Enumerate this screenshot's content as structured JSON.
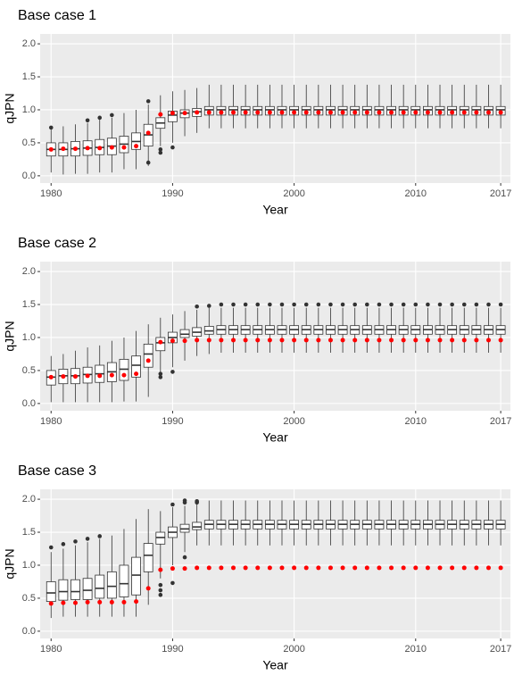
{
  "chart_data": [
    {
      "type": "boxplot",
      "title": "Base case 1",
      "x_label": "Year",
      "y_label": "qJPN",
      "xlim": [
        1979.1,
        2017.8
      ],
      "ylim": [
        -0.11,
        2.15
      ],
      "xticks": [
        1980,
        1990,
        2000,
        2010,
        2017
      ],
      "yticks": [
        {
          "value": 0,
          "label": "0.0"
        },
        {
          "value": 0.5,
          "label": "0.5"
        },
        {
          "value": 1,
          "label": "1.0"
        },
        {
          "value": 1.5,
          "label": "1.5"
        },
        {
          "value": 2,
          "label": "2.0"
        }
      ],
      "grid": true,
      "x": [
        1980,
        1981,
        1982,
        1983,
        1984,
        1985,
        1986,
        1987,
        1988,
        1989,
        1990,
        1991,
        1992,
        1993,
        1994,
        1995,
        1996,
        1997,
        1998,
        1999,
        2000,
        2001,
        2002,
        2003,
        2004,
        2005,
        2006,
        2007,
        2008,
        2009,
        2010,
        2011,
        2012,
        2013,
        2014,
        2015,
        2016,
        2017
      ],
      "box": {
        "color": "#333333",
        "low": [
          0.05,
          0.02,
          0.03,
          0.03,
          0.05,
          0.05,
          0.1,
          0.1,
          0.15,
          0.45,
          0.5,
          0.6,
          0.65,
          0.72,
          0.72,
          0.72,
          0.72,
          0.72,
          0.72,
          0.72,
          0.72,
          0.72,
          0.72,
          0.72,
          0.72,
          0.72,
          0.72,
          0.72,
          0.72,
          0.72,
          0.72,
          0.72,
          0.72,
          0.72,
          0.72,
          0.72,
          0.72,
          0.72
        ],
        "q1": [
          0.3,
          0.3,
          0.3,
          0.31,
          0.32,
          0.32,
          0.35,
          0.4,
          0.45,
          0.72,
          0.82,
          0.88,
          0.9,
          0.92,
          0.92,
          0.92,
          0.92,
          0.92,
          0.92,
          0.92,
          0.92,
          0.92,
          0.92,
          0.92,
          0.92,
          0.92,
          0.92,
          0.92,
          0.92,
          0.92,
          0.92,
          0.92,
          0.92,
          0.92,
          0.92,
          0.92,
          0.92,
          0.92
        ],
        "median": [
          0.4,
          0.4,
          0.41,
          0.42,
          0.43,
          0.45,
          0.48,
          0.52,
          0.62,
          0.8,
          0.92,
          0.95,
          0.97,
          1,
          1,
          1,
          1,
          1,
          1,
          1,
          1,
          1,
          1,
          1,
          1,
          1,
          1,
          1,
          1,
          1,
          1,
          1,
          1,
          1,
          1,
          1,
          1,
          1
        ],
        "q3": [
          0.5,
          0.5,
          0.52,
          0.53,
          0.55,
          0.57,
          0.6,
          0.65,
          0.78,
          0.88,
          0.98,
          1,
          1.02,
          1.05,
          1.05,
          1.05,
          1.05,
          1.05,
          1.05,
          1.05,
          1.05,
          1.05,
          1.05,
          1.05,
          1.05,
          1.05,
          1.05,
          1.05,
          1.05,
          1.05,
          1.05,
          1.05,
          1.05,
          1.05,
          1.05,
          1.05,
          1.05,
          1.05
        ],
        "high": [
          0.7,
          0.75,
          0.78,
          0.8,
          0.85,
          0.88,
          0.95,
          1,
          1.08,
          1.22,
          1.28,
          1.3,
          1.33,
          1.38,
          1.38,
          1.38,
          1.38,
          1.38,
          1.38,
          1.38,
          1.38,
          1.38,
          1.38,
          1.38,
          1.38,
          1.38,
          1.38,
          1.38,
          1.38,
          1.38,
          1.38,
          1.38,
          1.38,
          1.38,
          1.38,
          1.38,
          1.38,
          1.38
        ],
        "outliers": [
          [
            0.73
          ],
          [],
          [],
          [
            0.84
          ],
          [
            0.88
          ],
          [
            0.92
          ],
          [],
          [],
          [
            1.13,
            0.2
          ],
          [
            0.35,
            0.4
          ],
          [
            0.43
          ],
          [],
          [],
          [],
          [],
          [],
          [],
          [],
          [],
          [],
          [],
          [],
          [],
          [],
          [],
          [],
          [],
          [],
          [],
          [],
          [],
          [],
          [],
          [],
          [],
          [],
          [],
          []
        ]
      },
      "points": {
        "color": "#ff0000",
        "values": [
          0.4,
          0.41,
          0.41,
          0.42,
          0.42,
          0.43,
          0.43,
          0.45,
          0.65,
          0.93,
          0.95,
          0.95,
          0.96,
          0.96,
          0.96,
          0.96,
          0.96,
          0.96,
          0.96,
          0.96,
          0.96,
          0.96,
          0.96,
          0.96,
          0.96,
          0.96,
          0.96,
          0.96,
          0.96,
          0.96,
          0.96,
          0.96,
          0.96,
          0.96,
          0.96,
          0.96,
          0.96,
          0.96
        ]
      }
    },
    {
      "type": "boxplot",
      "title": "Base case 2",
      "x_label": "Year",
      "y_label": "qJPN",
      "xlim": [
        1979.1,
        2017.8
      ],
      "ylim": [
        -0.11,
        2.15
      ],
      "xticks": [
        1980,
        1990,
        2000,
        2010,
        2017
      ],
      "yticks": [
        {
          "value": 0,
          "label": "0.0"
        },
        {
          "value": 0.5,
          "label": "0.5"
        },
        {
          "value": 1,
          "label": "1.0"
        },
        {
          "value": 1.5,
          "label": "1.5"
        },
        {
          "value": 2,
          "label": "2.0"
        }
      ],
      "grid": true,
      "x": [
        1980,
        1981,
        1982,
        1983,
        1984,
        1985,
        1986,
        1987,
        1988,
        1989,
        1990,
        1991,
        1992,
        1993,
        1994,
        1995,
        1996,
        1997,
        1998,
        1999,
        2000,
        2001,
        2002,
        2003,
        2004,
        2005,
        2006,
        2007,
        2008,
        2009,
        2010,
        2011,
        2012,
        2013,
        2014,
        2015,
        2016,
        2017
      ],
      "box": {
        "color": "#333333",
        "low": [
          0.02,
          0.02,
          0.02,
          0.02,
          0.02,
          0.02,
          0.03,
          0.03,
          0.1,
          0.45,
          0.55,
          0.65,
          0.72,
          0.75,
          0.77,
          0.77,
          0.77,
          0.77,
          0.77,
          0.77,
          0.77,
          0.77,
          0.77,
          0.77,
          0.77,
          0.77,
          0.77,
          0.77,
          0.77,
          0.77,
          0.77,
          0.77,
          0.77,
          0.77,
          0.77,
          0.77,
          0.77,
          0.77
        ],
        "q1": [
          0.28,
          0.3,
          0.3,
          0.31,
          0.32,
          0.33,
          0.35,
          0.4,
          0.55,
          0.8,
          0.92,
          1,
          1.02,
          1.05,
          1.05,
          1.05,
          1.05,
          1.05,
          1.05,
          1.05,
          1.05,
          1.05,
          1.05,
          1.05,
          1.05,
          1.05,
          1.05,
          1.05,
          1.05,
          1.05,
          1.05,
          1.05,
          1.05,
          1.05,
          1.05,
          1.05,
          1.05,
          1.05
        ],
        "median": [
          0.4,
          0.42,
          0.42,
          0.44,
          0.45,
          0.48,
          0.52,
          0.58,
          0.75,
          0.92,
          1,
          1.05,
          1.08,
          1.1,
          1.12,
          1.12,
          1.12,
          1.12,
          1.12,
          1.12,
          1.12,
          1.12,
          1.12,
          1.12,
          1.12,
          1.12,
          1.12,
          1.12,
          1.12,
          1.12,
          1.12,
          1.12,
          1.12,
          1.12,
          1.12,
          1.12,
          1.12,
          1.12
        ],
        "q3": [
          0.5,
          0.52,
          0.53,
          0.55,
          0.58,
          0.62,
          0.67,
          0.72,
          0.9,
          1,
          1.08,
          1.12,
          1.15,
          1.17,
          1.18,
          1.18,
          1.18,
          1.18,
          1.18,
          1.18,
          1.18,
          1.18,
          1.18,
          1.18,
          1.18,
          1.18,
          1.18,
          1.18,
          1.18,
          1.18,
          1.18,
          1.18,
          1.18,
          1.18,
          1.18,
          1.18,
          1.18,
          1.18
        ],
        "high": [
          0.72,
          0.75,
          0.8,
          0.85,
          0.88,
          0.95,
          1,
          1.1,
          1.2,
          1.3,
          1.35,
          1.4,
          1.42,
          1.45,
          1.45,
          1.45,
          1.45,
          1.45,
          1.45,
          1.45,
          1.45,
          1.45,
          1.45,
          1.45,
          1.45,
          1.45,
          1.45,
          1.45,
          1.45,
          1.45,
          1.45,
          1.45,
          1.45,
          1.45,
          1.45,
          1.45,
          1.45,
          1.45
        ],
        "outliers": [
          [],
          [],
          [],
          [],
          [],
          [],
          [],
          [],
          [],
          [
            0.4,
            0.45
          ],
          [
            0.48
          ],
          [],
          [
            1.47
          ],
          [
            1.48
          ],
          [
            1.5
          ],
          [
            1.5
          ],
          [
            1.5
          ],
          [
            1.5
          ],
          [
            1.5
          ],
          [
            1.5
          ],
          [
            1.5
          ],
          [
            1.5
          ],
          [
            1.5
          ],
          [
            1.5
          ],
          [
            1.5
          ],
          [
            1.5
          ],
          [
            1.5
          ],
          [
            1.5
          ],
          [
            1.5
          ],
          [
            1.5
          ],
          [
            1.5
          ],
          [
            1.5
          ],
          [
            1.5
          ],
          [
            1.5
          ],
          [
            1.5
          ],
          [
            1.5
          ],
          [
            1.5
          ],
          [
            1.5
          ]
        ]
      },
      "points": {
        "color": "#ff0000",
        "values": [
          0.4,
          0.41,
          0.41,
          0.42,
          0.42,
          0.43,
          0.43,
          0.45,
          0.65,
          0.93,
          0.95,
          0.95,
          0.96,
          0.96,
          0.96,
          0.96,
          0.96,
          0.96,
          0.96,
          0.96,
          0.96,
          0.96,
          0.96,
          0.96,
          0.96,
          0.96,
          0.96,
          0.96,
          0.96,
          0.96,
          0.96,
          0.96,
          0.96,
          0.96,
          0.96,
          0.96,
          0.96,
          0.96
        ]
      }
    },
    {
      "type": "boxplot",
      "title": "Base case 3",
      "x_label": "Year",
      "y_label": "qJPN",
      "xlim": [
        1979.1,
        2017.8
      ],
      "ylim": [
        -0.11,
        2.15
      ],
      "xticks": [
        1980,
        1990,
        2000,
        2010,
        2017
      ],
      "yticks": [
        {
          "value": 0,
          "label": "0.0"
        },
        {
          "value": 0.5,
          "label": "0.5"
        },
        {
          "value": 1,
          "label": "1.0"
        },
        {
          "value": 1.5,
          "label": "1.5"
        },
        {
          "value": 2,
          "label": "2.0"
        }
      ],
      "grid": true,
      "x": [
        1980,
        1981,
        1982,
        1983,
        1984,
        1985,
        1986,
        1987,
        1988,
        1989,
        1990,
        1991,
        1992,
        1993,
        1994,
        1995,
        1996,
        1997,
        1998,
        1999,
        2000,
        2001,
        2002,
        2003,
        2004,
        2005,
        2006,
        2007,
        2008,
        2009,
        2010,
        2011,
        2012,
        2013,
        2014,
        2015,
        2016,
        2017
      ],
      "box": {
        "color": "#333333",
        "low": [
          0.2,
          0.22,
          0.22,
          0.22,
          0.22,
          0.22,
          0.22,
          0.22,
          0.4,
          0.8,
          1,
          1.2,
          1.3,
          1.3,
          1.3,
          1.3,
          1.3,
          1.3,
          1.3,
          1.3,
          1.3,
          1.3,
          1.3,
          1.3,
          1.3,
          1.3,
          1.3,
          1.3,
          1.3,
          1.3,
          1.3,
          1.3,
          1.3,
          1.3,
          1.3,
          1.3,
          1.3,
          1.3
        ],
        "q1": [
          0.45,
          0.47,
          0.48,
          0.48,
          0.5,
          0.5,
          0.52,
          0.55,
          0.9,
          1.32,
          1.42,
          1.5,
          1.54,
          1.55,
          1.55,
          1.55,
          1.55,
          1.55,
          1.55,
          1.55,
          1.55,
          1.55,
          1.55,
          1.55,
          1.55,
          1.55,
          1.55,
          1.55,
          1.55,
          1.55,
          1.55,
          1.55,
          1.55,
          1.55,
          1.55,
          1.55,
          1.55,
          1.55
        ],
        "median": [
          0.58,
          0.6,
          0.6,
          0.62,
          0.65,
          0.68,
          0.72,
          0.85,
          1.15,
          1.42,
          1.5,
          1.55,
          1.58,
          1.62,
          1.62,
          1.62,
          1.62,
          1.62,
          1.62,
          1.62,
          1.62,
          1.62,
          1.62,
          1.62,
          1.62,
          1.62,
          1.62,
          1.62,
          1.62,
          1.62,
          1.62,
          1.62,
          1.62,
          1.62,
          1.62,
          1.62,
          1.62,
          1.62
        ],
        "q3": [
          0.75,
          0.78,
          0.78,
          0.8,
          0.85,
          0.9,
          1,
          1.12,
          1.33,
          1.5,
          1.58,
          1.62,
          1.65,
          1.68,
          1.68,
          1.68,
          1.68,
          1.68,
          1.68,
          1.68,
          1.68,
          1.68,
          1.68,
          1.68,
          1.68,
          1.68,
          1.68,
          1.68,
          1.68,
          1.68,
          1.68,
          1.68,
          1.68,
          1.68,
          1.68,
          1.68,
          1.68,
          1.68
        ],
        "high": [
          1.2,
          1.25,
          1.3,
          1.35,
          1.4,
          1.45,
          1.55,
          1.7,
          1.85,
          1.82,
          1.88,
          1.9,
          1.92,
          1.98,
          1.98,
          1.98,
          1.98,
          1.98,
          1.98,
          1.98,
          1.98,
          1.98,
          1.98,
          1.98,
          1.98,
          1.98,
          1.98,
          1.98,
          1.98,
          1.98,
          1.98,
          1.98,
          1.98,
          1.98,
          1.98,
          1.98,
          1.98,
          1.98
        ],
        "outliers": [
          [
            1.27
          ],
          [
            1.32
          ],
          [
            1.36
          ],
          [
            1.4
          ],
          [
            1.44
          ],
          [],
          [],
          [],
          [],
          [
            0.55,
            0.62,
            0.7
          ],
          [
            1.92,
            0.73
          ],
          [
            1.95,
            1.98,
            1.12
          ],
          [
            1.95,
            1.97
          ],
          [],
          [],
          [],
          [],
          [],
          [],
          [],
          [],
          [],
          [],
          [],
          [],
          [],
          [],
          [],
          [],
          [],
          [],
          [],
          [],
          [],
          [],
          [],
          [],
          []
        ]
      },
      "points": {
        "color": "#ff0000",
        "values": [
          0.42,
          0.43,
          0.43,
          0.44,
          0.44,
          0.44,
          0.44,
          0.45,
          0.65,
          0.93,
          0.95,
          0.95,
          0.96,
          0.96,
          0.96,
          0.96,
          0.96,
          0.96,
          0.96,
          0.96,
          0.96,
          0.96,
          0.96,
          0.96,
          0.96,
          0.96,
          0.96,
          0.96,
          0.96,
          0.96,
          0.96,
          0.96,
          0.96,
          0.96,
          0.96,
          0.96,
          0.96,
          0.96
        ]
      }
    }
  ]
}
